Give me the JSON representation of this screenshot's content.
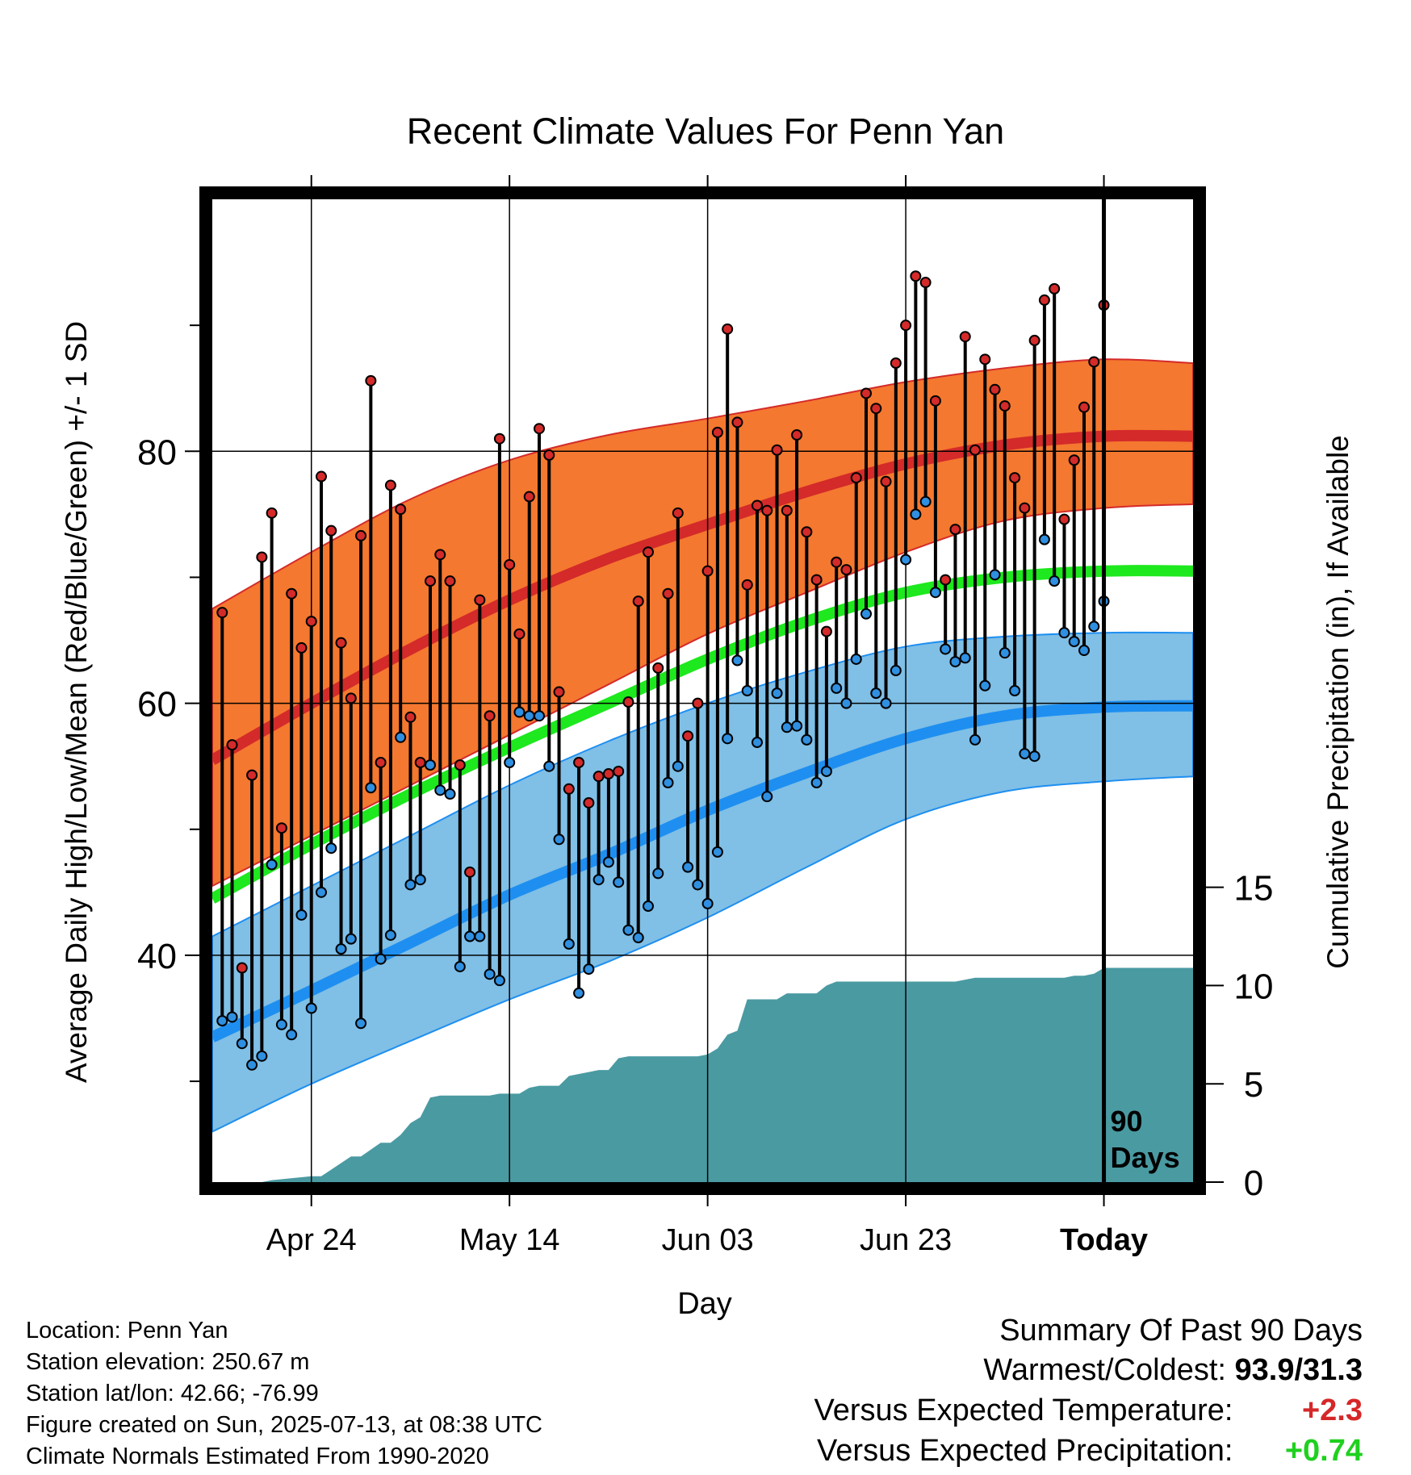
{
  "title": "Recent Climate Values For Penn Yan",
  "colors": {
    "high_band": "#f4782f",
    "high_mean": "#d42a2a",
    "low_band": "#80bfe6",
    "low_mean": "#1e8ff0",
    "mean_line": "#1ee81e",
    "precip": "#4a9aa2",
    "high_marker": "#d42a2a",
    "low_marker": "#2f8fe0"
  },
  "footer": {
    "location": "Location: Penn Yan",
    "elevation": "Station elevation: 250.67 m",
    "latlon": "Station lat/lon: 42.66; -76.99",
    "created": "Figure created on Sun, 2025-07-13, at 08:38 UTC",
    "normals": "Climate Normals Estimated From 1990-2020"
  },
  "summary": {
    "title": "Summary Of Past 90 Days",
    "warmest_label": "Warmest/Coldest:",
    "warmest_value": "93.9/31.3",
    "temp_label": "Versus Expected Temperature:",
    "temp_value": "+2.3",
    "precip_label": "Versus Expected Precipitation:",
    "precip_value": "+0.74"
  },
  "chart_data": {
    "type": "line",
    "xlabel": "Day",
    "ylabel": "Average Daily High/Low/Mean (Red/Blue/Green) +/- 1 SD",
    "y2label": "Cumulative Precipitation (in), If Available",
    "xlim": [
      -90,
      9
    ],
    "ylim": [
      22,
      100
    ],
    "y2lim": [
      0,
      50
    ],
    "x_ticks": [
      {
        "x": -80,
        "label": "Apr 24"
      },
      {
        "x": -60,
        "label": "May 14"
      },
      {
        "x": -40,
        "label": "Jun 03"
      },
      {
        "x": -20,
        "label": "Jun 23"
      },
      {
        "x": 0,
        "label": "Today"
      }
    ],
    "y_ticks": [
      40,
      60,
      80
    ],
    "y_minor_ticks": [
      30,
      50,
      70,
      90
    ],
    "y2_ticks": [
      0,
      5,
      10,
      15
    ],
    "today_marker": {
      "x": 0,
      "label_line1": "90",
      "label_line2": "Days"
    },
    "normals": {
      "x": [
        -90,
        -80,
        -70,
        -60,
        -50,
        -40,
        -30,
        -20,
        -10,
        0,
        9
      ],
      "high_mean": [
        55.5,
        60.0,
        64.3,
        68.2,
        71.5,
        74.2,
        76.8,
        79.0,
        80.5,
        81.2,
        81.2
      ],
      "high_upper": [
        67.5,
        72.0,
        76.2,
        79.3,
        81.3,
        82.6,
        84.0,
        85.5,
        86.6,
        87.3,
        87.0
      ],
      "high_lower": [
        45.5,
        49.5,
        53.5,
        57.5,
        61.5,
        65.5,
        68.8,
        72.0,
        74.5,
        75.5,
        75.8
      ],
      "mean": [
        44.5,
        48.8,
        52.8,
        56.5,
        60.0,
        63.5,
        66.5,
        68.8,
        70.0,
        70.5,
        70.5
      ],
      "low_mean": [
        33.5,
        37.2,
        41.0,
        44.8,
        48.0,
        51.5,
        54.5,
        57.2,
        59.0,
        59.7,
        59.8
      ],
      "low_upper": [
        41.5,
        45.5,
        49.5,
        53.5,
        57.0,
        60.0,
        62.5,
        64.5,
        65.3,
        65.6,
        65.6
      ],
      "low_lower": [
        26.0,
        29.8,
        33.2,
        36.5,
        39.5,
        43.0,
        47.0,
        50.8,
        53.0,
        53.8,
        54.2
      ]
    },
    "daily_x_start": -89,
    "daily_high": [
      67.2,
      56.7,
      39.0,
      54.3,
      71.6,
      75.1,
      50.1,
      68.7,
      64.4,
      66.5,
      78.0,
      73.7,
      64.8,
      60.4,
      73.3,
      85.6,
      55.3,
      77.3,
      75.4,
      58.9,
      55.3,
      69.7,
      71.8,
      69.7,
      55.1,
      46.6,
      68.2,
      59.0,
      81.0,
      71.0,
      65.5,
      76.4,
      81.8,
      79.7,
      60.9,
      53.2,
      55.3,
      52.1,
      54.2,
      54.4,
      54.6,
      60.1,
      68.1,
      72.0,
      62.8,
      68.7,
      75.1,
      57.4,
      60.0,
      70.5,
      81.5,
      89.7,
      82.3,
      69.4,
      75.7,
      75.3,
      80.1,
      75.3,
      81.3,
      73.6,
      69.8,
      65.7,
      71.2,
      70.6,
      77.9,
      84.6,
      83.4,
      77.6,
      87.0,
      90.0,
      93.9,
      93.4,
      84.0,
      69.8,
      73.8,
      89.1,
      80.1,
      87.3,
      84.9,
      83.6,
      77.9,
      75.5,
      88.8,
      92.0,
      92.9,
      74.6,
      79.3,
      83.5,
      87.1,
      91.6
    ],
    "daily_low": [
      34.8,
      35.1,
      33.0,
      31.3,
      32.0,
      47.2,
      34.5,
      33.7,
      43.2,
      35.8,
      45.0,
      48.5,
      40.5,
      41.3,
      34.6,
      53.3,
      39.7,
      41.6,
      57.3,
      45.6,
      46.0,
      55.1,
      53.1,
      52.8,
      39.1,
      41.5,
      41.5,
      38.5,
      38.0,
      55.3,
      59.3,
      59.0,
      59.0,
      55.0,
      49.2,
      40.9,
      37.0,
      38.9,
      46.0,
      47.4,
      45.8,
      42.0,
      41.4,
      43.9,
      46.5,
      53.7,
      55.0,
      47.0,
      45.6,
      44.1,
      48.2,
      57.2,
      63.4,
      61.0,
      56.9,
      52.6,
      60.8,
      58.1,
      58.2,
      57.1,
      53.7,
      54.6,
      61.2,
      60.0,
      63.5,
      67.1,
      60.8,
      60.0,
      62.6,
      71.4,
      75.0,
      76.0,
      68.8,
      64.3,
      63.3,
      63.6,
      57.1,
      61.4,
      70.2,
      64.0,
      61.0,
      56.0,
      55.8,
      73.0,
      69.7,
      65.6,
      64.9,
      64.2,
      66.1,
      68.1
    ],
    "precip_cum": {
      "x": [
        -90,
        -85,
        -84,
        -80,
        -79,
        -76,
        -75,
        -73,
        -72,
        -71,
        -70,
        -69,
        -68,
        -67,
        -66,
        -65,
        -64,
        -63,
        -62,
        -61,
        -60,
        -59,
        -58,
        -57,
        -56,
        -55,
        -54,
        -53,
        -52,
        -51,
        -50,
        -49,
        -48,
        -47,
        -46,
        -45,
        -44,
        -43,
        -42,
        -41,
        -40,
        -39,
        -38,
        -37,
        -36,
        -35,
        -34,
        -33,
        -32,
        -31,
        -30,
        -29,
        -28,
        -27,
        -26,
        -25,
        -24,
        -23,
        -22,
        -21,
        -20,
        -19,
        -18,
        -17,
        -16,
        -15,
        -14,
        -13,
        -12,
        -11,
        -10,
        -9,
        -8,
        -7,
        -6,
        -5,
        -4,
        -3,
        -2,
        -1,
        0,
        9
      ],
      "y": [
        0.0,
        0.0,
        0.1,
        0.3,
        0.3,
        1.3,
        1.3,
        2.0,
        2.0,
        2.4,
        3.0,
        3.3,
        4.3,
        4.4,
        4.4,
        4.4,
        4.4,
        4.4,
        4.4,
        4.5,
        4.5,
        4.5,
        4.8,
        4.9,
        4.9,
        4.9,
        5.4,
        5.5,
        5.6,
        5.7,
        5.7,
        6.3,
        6.4,
        6.4,
        6.4,
        6.4,
        6.4,
        6.4,
        6.4,
        6.4,
        6.5,
        6.8,
        7.5,
        7.7,
        9.3,
        9.3,
        9.3,
        9.3,
        9.6,
        9.6,
        9.6,
        9.6,
        10.0,
        10.2,
        10.2,
        10.2,
        10.2,
        10.2,
        10.2,
        10.2,
        10.2,
        10.2,
        10.2,
        10.2,
        10.2,
        10.2,
        10.3,
        10.4,
        10.4,
        10.4,
        10.4,
        10.4,
        10.4,
        10.4,
        10.4,
        10.4,
        10.4,
        10.5,
        10.5,
        10.6,
        10.9,
        10.9
      ]
    }
  }
}
